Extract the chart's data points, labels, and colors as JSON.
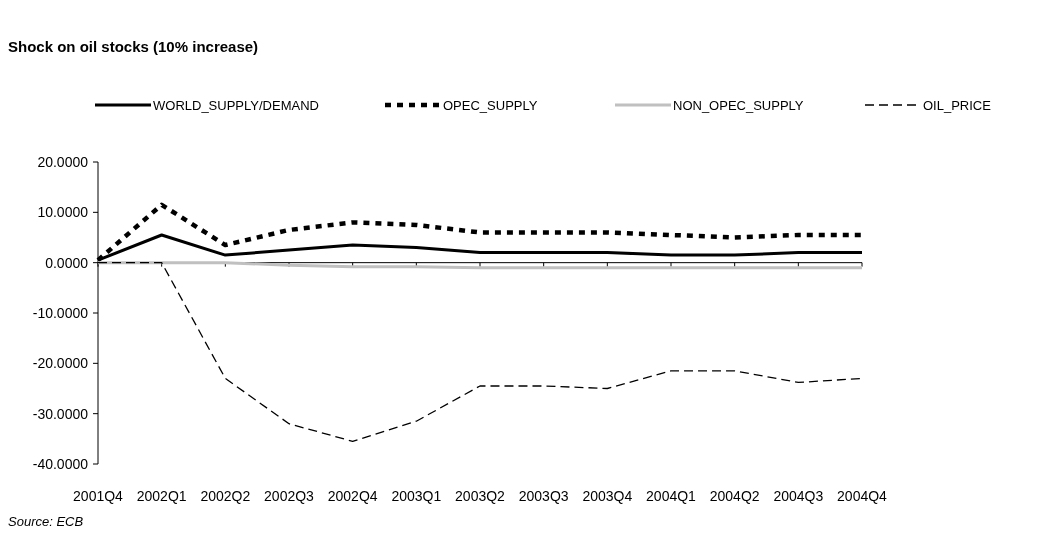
{
  "chart_data": {
    "type": "line",
    "title": "Shock on oil stocks (10% increase)",
    "categories": [
      "2001Q4",
      "2002Q1",
      "2002Q2",
      "2002Q3",
      "2002Q4",
      "2003Q1",
      "2003Q2",
      "2003Q3",
      "2003Q4",
      "2004Q1",
      "2004Q2",
      "2004Q3",
      "2004Q4"
    ],
    "series": [
      {
        "name": "WORLD_SUPPLY/DEMAND",
        "color": "#000000",
        "line_style": "solid",
        "values": [
          0.5,
          5.5,
          1.5,
          2.5,
          3.5,
          3.0,
          2.0,
          2.0,
          2.0,
          1.5,
          1.5,
          2.0,
          2.0
        ]
      },
      {
        "name": "OPEC_SUPPLY",
        "color": "#000000",
        "line_style": "dotted",
        "values": [
          0.5,
          11.5,
          3.5,
          6.5,
          8.0,
          7.5,
          6.0,
          6.0,
          6.0,
          5.5,
          5.0,
          5.5,
          5.5
        ]
      },
      {
        "name": "NON_OPEC_SUPPLY",
        "color": "#c0c0c0",
        "line_style": "solid",
        "values": [
          0,
          0,
          0,
          -0.5,
          -0.8,
          -0.8,
          -1,
          -1,
          -1,
          -1,
          -1,
          -1,
          -1
        ]
      },
      {
        "name": "OIL_PRICE",
        "color": "#000000",
        "line_style": "dashed",
        "values": [
          0,
          0,
          -23,
          -32,
          -35.5,
          -31.5,
          -24.5,
          -24.5,
          -25,
          -21.5,
          -21.5,
          -23.8,
          -23
        ]
      }
    ],
    "ylim": [
      -40,
      20
    ],
    "yticks": [
      {
        "value": -40,
        "label": "-40.0000"
      },
      {
        "value": -30,
        "label": "-30.0000"
      },
      {
        "value": -20,
        "label": "-20.0000"
      },
      {
        "value": -10,
        "label": "-10.0000"
      },
      {
        "value": 0,
        "label": "0.0000"
      },
      {
        "value": 10,
        "label": "10.0000"
      },
      {
        "value": 20,
        "label": "20.0000"
      }
    ],
    "legend": "top",
    "marker": "none",
    "annotations": [
      "Source: ECB"
    ]
  }
}
